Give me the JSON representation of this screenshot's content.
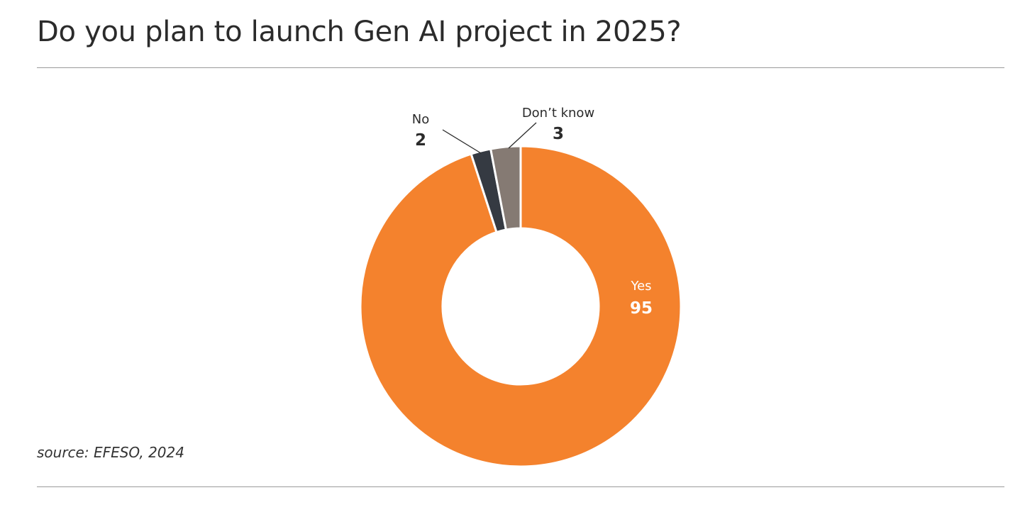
{
  "title": "Do you plan to launch Gen AI project in 2025?",
  "source": "source: EFESO, 2024",
  "chart_data": {
    "type": "pie",
    "variant": "donut",
    "title": "Do you plan to launch Gen AI project in 2025?",
    "slices": [
      {
        "label": "Yes",
        "value": 95,
        "color": "#f4822d"
      },
      {
        "label": "No",
        "value": 2,
        "color": "#353a42"
      },
      {
        "label": "Don’t know",
        "value": 3,
        "color": "#857a73"
      }
    ],
    "legend": "none",
    "data_labels": "label above value"
  }
}
